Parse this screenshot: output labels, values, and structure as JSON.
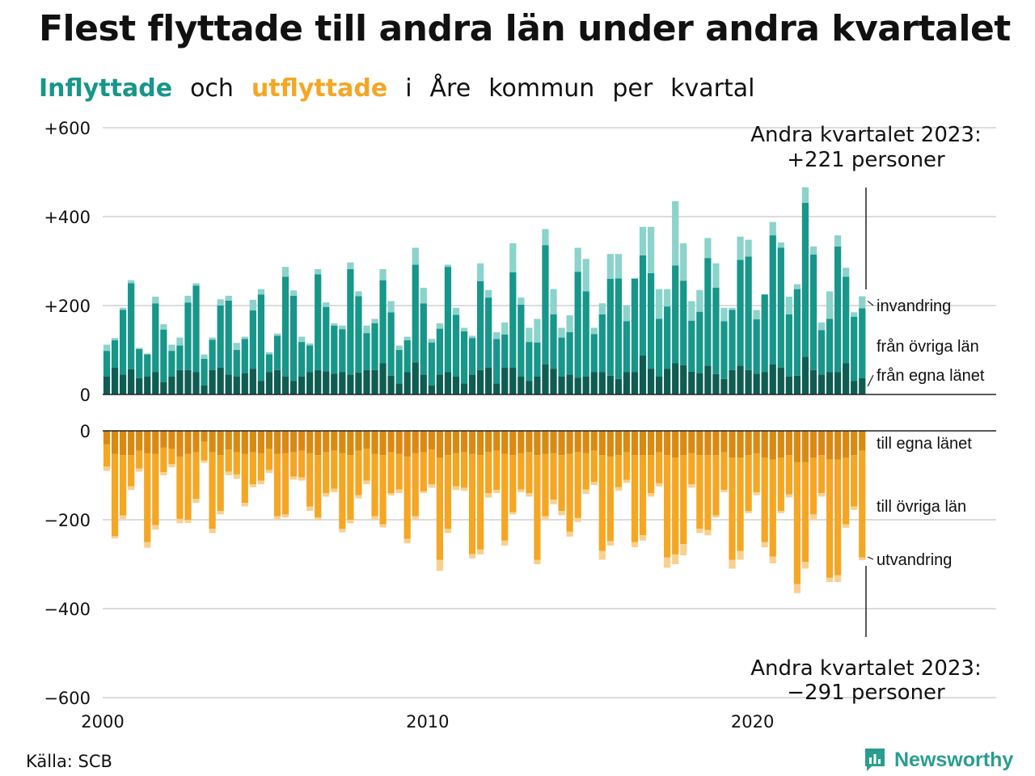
{
  "title": "Flest flyttade till andra län under andra kvartalet",
  "subtitle": {
    "inflow_word": "Inflyttade",
    "and_word": "och",
    "outflow_word": "utflyttade",
    "rest": [
      "i",
      "Åre",
      "kommun",
      "per",
      "kvartal"
    ]
  },
  "source": "Källa: SCB",
  "brand": "Newsworthy",
  "colors": {
    "inflow_local": "#0f5c52",
    "inflow_other": "#17968a",
    "inflow_immigration": "#8bd3cb",
    "outflow_local": "#d98a12",
    "outflow_other": "#f5a623",
    "outflow_emigration": "#f9d08f",
    "inflow_title": "#17968a",
    "outflow_title": "#f5a623",
    "brand": "#2a9d8f"
  },
  "chart_data": {
    "type": "bar",
    "stacked": true,
    "first_quarter": "2000-Q1",
    "last_quarter": "2023-Q2",
    "x_ticks": [
      "2000",
      "2010",
      "2020"
    ],
    "inflow_ticks": [
      "0",
      "+200",
      "+400",
      "+600"
    ],
    "inflow_tick_values": [
      0,
      200,
      400,
      600
    ],
    "outflow_ticks": [
      "0",
      "−200",
      "−400",
      "−600"
    ],
    "outflow_tick_values": [
      0,
      -200,
      -400,
      -600
    ],
    "inflow_ylim": [
      0,
      600
    ],
    "outflow_ylim": [
      -600,
      0
    ],
    "inflow_series_labels": [
      "från egna länet",
      "från övriga län",
      "invandring"
    ],
    "outflow_series_labels": [
      "till egna länet",
      "till övriga län",
      "utvandring"
    ],
    "grid": true,
    "annotation_inflow": [
      "Andra kvartalet 2023:",
      "+221 personer"
    ],
    "annotation_outflow": [
      "Andra kvartalet 2023:",
      "−291 personer"
    ],
    "inflow_total": [
      112,
      127,
      195,
      257,
      105,
      92,
      220,
      158,
      112,
      128,
      222,
      250,
      90,
      128,
      214,
      202,
      116,
      130,
      213,
      237,
      95,
      137,
      287,
      234,
      130,
      115,
      282,
      207,
      160,
      155,
      297,
      232,
      155,
      170,
      282,
      210,
      110,
      130,
      330,
      240,
      125,
      160,
      292,
      195,
      150,
      132,
      295,
      235,
      140,
      162,
      340,
      218,
      150,
      170,
      372,
      237,
      150,
      178,
      330,
      305,
      150,
      205,
      316,
      316,
      200,
      262,
      377,
      377,
      237,
      237,
      435,
      340,
      210,
      235,
      352,
      295,
      195,
      195,
      355,
      348,
      190,
      225,
      388,
      342,
      220,
      248,
      466,
      333,
      162,
      232,
      358,
      285,
      185,
      221
    ],
    "inflow_local": [
      40,
      60,
      45,
      57,
      37,
      40,
      50,
      28,
      40,
      55,
      55,
      50,
      20,
      55,
      60,
      45,
      40,
      48,
      58,
      30,
      50,
      55,
      40,
      30,
      40,
      50,
      55,
      52,
      47,
      50,
      45,
      49,
      55,
      55,
      70,
      42,
      25,
      50,
      72,
      45,
      20,
      45,
      50,
      40,
      25,
      45,
      55,
      60,
      25,
      60,
      60,
      40,
      30,
      40,
      68,
      58,
      40,
      45,
      38,
      40,
      50,
      50,
      42,
      35,
      50,
      50,
      88,
      58,
      40,
      58,
      70,
      66,
      51,
      48,
      65,
      46,
      35,
      55,
      65,
      55,
      47,
      50,
      68,
      60,
      40,
      42,
      85,
      55,
      45,
      50,
      50,
      70,
      30,
      37
    ],
    "inflow_other": [
      58,
      62,
      145,
      193,
      65,
      50,
      155,
      118,
      58,
      55,
      152,
      195,
      60,
      68,
      140,
      166,
      60,
      77,
      131,
      195,
      40,
      77,
      225,
      192,
      78,
      60,
      215,
      145,
      108,
      97,
      237,
      172,
      83,
      105,
      187,
      143,
      75,
      72,
      220,
      160,
      97,
      103,
      237,
      139,
      117,
      82,
      200,
      158,
      100,
      75,
      215,
      162,
      88,
      77,
      268,
      122,
      88,
      95,
      238,
      192,
      86,
      130,
      218,
      226,
      115,
      210,
      225,
      215,
      130,
      140,
      220,
      190,
      115,
      138,
      242,
      194,
      130,
      135,
      238,
      255,
      122,
      175,
      290,
      270,
      140,
      195,
      346,
      260,
      100,
      120,
      283,
      195,
      145,
      157
    ],
    "inflow_immigration": [
      14,
      5,
      5,
      7,
      3,
      2,
      15,
      12,
      14,
      18,
      15,
      5,
      10,
      5,
      14,
      11,
      16,
      5,
      24,
      12,
      5,
      5,
      22,
      12,
      12,
      5,
      12,
      10,
      5,
      8,
      15,
      11,
      17,
      10,
      25,
      25,
      10,
      8,
      38,
      35,
      8,
      12,
      5,
      16,
      8,
      5,
      40,
      17,
      15,
      27,
      65,
      16,
      32,
      53,
      36,
      57,
      22,
      38,
      54,
      73,
      14,
      25,
      56,
      55,
      35,
      2,
      64,
      104,
      67,
      39,
      145,
      84,
      44,
      49,
      45,
      55,
      30,
      5,
      52,
      38,
      21,
      0,
      30,
      12,
      40,
      11,
      35,
      18,
      17,
      62,
      25,
      20,
      10,
      27
    ],
    "outflow_total": [
      -90,
      -242,
      -198,
      -133,
      -92,
      -263,
      -222,
      -100,
      -82,
      -208,
      -207,
      -162,
      -72,
      -230,
      -188,
      -100,
      -108,
      -170,
      -127,
      -120,
      -95,
      -200,
      -195,
      -110,
      -112,
      -180,
      -200,
      -148,
      -138,
      -228,
      -208,
      -152,
      -120,
      -200,
      -217,
      -145,
      -140,
      -253,
      -200,
      -140,
      -128,
      -315,
      -230,
      -133,
      -135,
      -287,
      -278,
      -150,
      -140,
      -258,
      -188,
      -138,
      -148,
      -300,
      -200,
      -165,
      -190,
      -238,
      -205,
      -142,
      -122,
      -290,
      -258,
      -135,
      -117,
      -262,
      -247,
      -148,
      -125,
      -308,
      -300,
      -280,
      -128,
      -230,
      -235,
      -195,
      -138,
      -310,
      -290,
      -185,
      -145,
      -262,
      -298,
      -185,
      -150,
      -365,
      -310,
      -200,
      -148,
      -340,
      -340,
      -218,
      -178,
      -291
    ],
    "outflow_local": [
      -30,
      -52,
      -55,
      -55,
      -45,
      -50,
      -52,
      -38,
      -40,
      -58,
      -52,
      -48,
      -25,
      -48,
      -55,
      -42,
      -48,
      -52,
      -48,
      -50,
      -40,
      -52,
      -50,
      -48,
      -45,
      -50,
      -55,
      -48,
      -45,
      -50,
      -55,
      -45,
      -40,
      -52,
      -55,
      -48,
      -52,
      -58,
      -50,
      -48,
      -42,
      -60,
      -55,
      -50,
      -48,
      -52,
      -55,
      -48,
      -45,
      -52,
      -55,
      -50,
      -48,
      -55,
      -52,
      -50,
      -55,
      -52,
      -48,
      -50,
      -45,
      -55,
      -58,
      -55,
      -48,
      -55,
      -55,
      -55,
      -48,
      -55,
      -60,
      -55,
      -50,
      -55,
      -55,
      -55,
      -48,
      -60,
      -60,
      -55,
      -50,
      -60,
      -65,
      -60,
      -55,
      -70,
      -70,
      -60,
      -55,
      -65,
      -65,
      -60,
      -55,
      -45
    ],
    "outflow_other": [
      -50,
      -185,
      -135,
      -70,
      -40,
      -200,
      -160,
      -55,
      -35,
      -140,
      -148,
      -105,
      -42,
      -172,
      -125,
      -50,
      -50,
      -110,
      -72,
      -62,
      -48,
      -140,
      -138,
      -55,
      -60,
      -120,
      -140,
      -92,
      -85,
      -170,
      -145,
      -100,
      -72,
      -140,
      -155,
      -92,
      -80,
      -185,
      -142,
      -88,
      -78,
      -230,
      -165,
      -75,
      -80,
      -225,
      -212,
      -92,
      -88,
      -195,
      -128,
      -82,
      -92,
      -235,
      -140,
      -105,
      -125,
      -175,
      -148,
      -82,
      -70,
      -215,
      -190,
      -72,
      -62,
      -195,
      -180,
      -85,
      -70,
      -230,
      -218,
      -200,
      -70,
      -165,
      -168,
      -135,
      -85,
      -230,
      -210,
      -125,
      -88,
      -190,
      -218,
      -120,
      -88,
      -275,
      -225,
      -128,
      -85,
      -265,
      -260,
      -150,
      -115,
      -240
    ],
    "outflow_emigration": [
      -10,
      -5,
      -8,
      -8,
      -7,
      -13,
      -10,
      -7,
      -7,
      -10,
      -7,
      -9,
      -5,
      -10,
      -8,
      -8,
      -10,
      -8,
      -7,
      -8,
      -7,
      -8,
      -7,
      -7,
      -7,
      -10,
      -5,
      -8,
      -8,
      -8,
      -8,
      -7,
      -8,
      -8,
      -7,
      -5,
      -8,
      -10,
      -8,
      -4,
      -8,
      -25,
      -10,
      -8,
      -7,
      -10,
      -11,
      -10,
      -7,
      -11,
      -5,
      -6,
      -8,
      -10,
      -8,
      -10,
      -10,
      -11,
      -9,
      -10,
      -7,
      -20,
      -10,
      -8,
      -7,
      -12,
      -12,
      -8,
      -7,
      -23,
      -22,
      -25,
      -8,
      -10,
      -12,
      -5,
      -5,
      -20,
      -20,
      -5,
      -7,
      -12,
      -15,
      -5,
      -7,
      -20,
      -15,
      -12,
      -8,
      -10,
      -15,
      -8,
      -8,
      -6
    ]
  }
}
